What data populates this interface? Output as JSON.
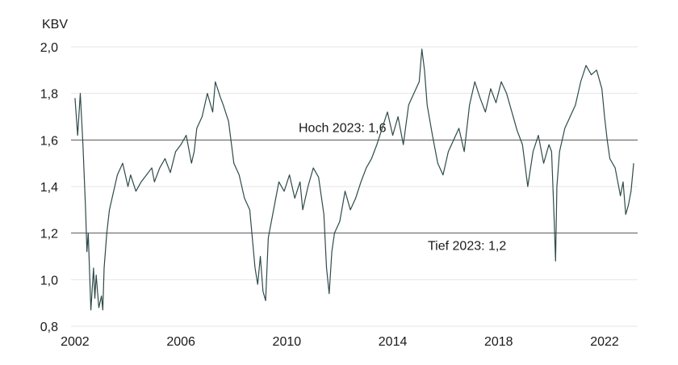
{
  "chart_data": {
    "type": "line",
    "ylabel": "KBV",
    "ylim": [
      0.8,
      2.0
    ],
    "xlim": [
      2001.85,
      2023.25
    ],
    "y_ticks": [
      "0,8",
      "1,0",
      "1,2",
      "1,4",
      "1,6",
      "1,8",
      "2,0"
    ],
    "y_tick_values": [
      0.8,
      1.0,
      1.2,
      1.4,
      1.6,
      1.8,
      2.0
    ],
    "x_ticks": [
      "2002",
      "2006",
      "2010",
      "2014",
      "2018",
      "2022"
    ],
    "x_tick_values": [
      2002,
      2006,
      2010,
      2014,
      2018,
      2022
    ],
    "grid": "horizontal",
    "line_color": "#2f4a4a",
    "reference_lines": [
      {
        "value": 1.6,
        "label": "Hoch 2023: 1,6"
      },
      {
        "value": 1.2,
        "label": "Tief 2023: 1,2"
      }
    ],
    "series": [
      {
        "x": [
          2002.0,
          2002.1,
          2002.2,
          2002.3,
          2002.4,
          2002.45,
          2002.5,
          2002.6,
          2002.7,
          2002.75,
          2002.8,
          2002.9,
          2003.0,
          2003.05,
          2003.1,
          2003.2,
          2003.3,
          2003.4,
          2003.6,
          2003.8,
          2004.0,
          2004.1,
          2004.3,
          2004.5,
          2004.7,
          2004.9,
          2005.0,
          2005.2,
          2005.4,
          2005.6,
          2005.8,
          2006.0,
          2006.2,
          2006.4,
          2006.5,
          2006.6,
          2006.8,
          2007.0,
          2007.2,
          2007.3,
          2007.5,
          2007.6,
          2007.8,
          2008.0,
          2008.2,
          2008.4,
          2008.6,
          2008.8,
          2008.9,
          2009.0,
          2009.1,
          2009.2,
          2009.3,
          2009.5,
          2009.7,
          2009.9,
          2010.1,
          2010.3,
          2010.5,
          2010.6,
          2010.8,
          2011.0,
          2011.2,
          2011.4,
          2011.5,
          2011.6,
          2011.7,
          2011.8,
          2012.0,
          2012.2,
          2012.4,
          2012.6,
          2012.8,
          2013.0,
          2013.2,
          2013.4,
          2013.6,
          2013.8,
          2014.0,
          2014.2,
          2014.4,
          2014.6,
          2014.8,
          2015.0,
          2015.1,
          2015.2,
          2015.3,
          2015.5,
          2015.7,
          2015.9,
          2016.1,
          2016.3,
          2016.5,
          2016.7,
          2016.9,
          2017.1,
          2017.3,
          2017.5,
          2017.7,
          2017.9,
          2018.1,
          2018.3,
          2018.5,
          2018.7,
          2018.9,
          2019.1,
          2019.3,
          2019.5,
          2019.7,
          2019.9,
          2020.0,
          2020.1,
          2020.15,
          2020.2,
          2020.3,
          2020.5,
          2020.7,
          2020.9,
          2021.1,
          2021.3,
          2021.5,
          2021.7,
          2021.9,
          2022.0,
          2022.1,
          2022.2,
          2022.4,
          2022.6,
          2022.7,
          2022.8,
          2022.9,
          2023.0,
          2023.1
        ],
        "y": [
          1.78,
          1.62,
          1.8,
          1.58,
          1.3,
          1.12,
          1.2,
          0.87,
          1.05,
          0.92,
          1.02,
          0.88,
          0.93,
          0.87,
          1.05,
          1.2,
          1.3,
          1.35,
          1.45,
          1.5,
          1.4,
          1.45,
          1.38,
          1.42,
          1.45,
          1.48,
          1.42,
          1.48,
          1.52,
          1.46,
          1.55,
          1.58,
          1.62,
          1.5,
          1.55,
          1.65,
          1.7,
          1.8,
          1.72,
          1.85,
          1.78,
          1.75,
          1.68,
          1.5,
          1.45,
          1.35,
          1.3,
          1.05,
          0.98,
          1.1,
          0.95,
          0.91,
          1.18,
          1.3,
          1.42,
          1.38,
          1.45,
          1.35,
          1.42,
          1.3,
          1.4,
          1.48,
          1.44,
          1.28,
          1.05,
          0.94,
          1.12,
          1.2,
          1.25,
          1.38,
          1.3,
          1.35,
          1.42,
          1.48,
          1.52,
          1.58,
          1.65,
          1.72,
          1.62,
          1.7,
          1.58,
          1.75,
          1.8,
          1.85,
          1.99,
          1.9,
          1.75,
          1.62,
          1.5,
          1.45,
          1.55,
          1.6,
          1.65,
          1.55,
          1.75,
          1.85,
          1.78,
          1.72,
          1.82,
          1.76,
          1.85,
          1.8,
          1.72,
          1.64,
          1.58,
          1.4,
          1.55,
          1.62,
          1.5,
          1.58,
          1.55,
          1.25,
          1.08,
          1.4,
          1.55,
          1.65,
          1.7,
          1.75,
          1.85,
          1.92,
          1.88,
          1.9,
          1.82,
          1.7,
          1.6,
          1.52,
          1.48,
          1.36,
          1.42,
          1.28,
          1.32,
          1.38,
          1.5
        ]
      }
    ]
  }
}
